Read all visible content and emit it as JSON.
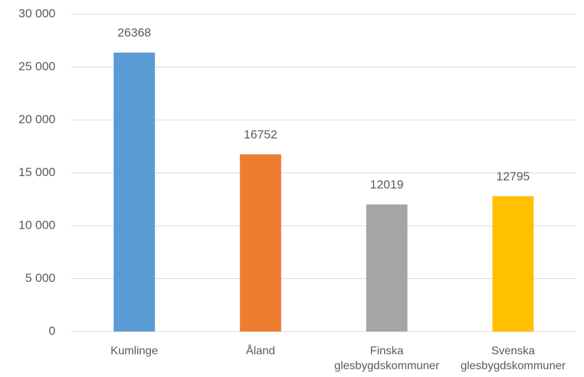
{
  "chart_data": {
    "type": "bar",
    "categories": [
      "Kumlinge",
      "Åland",
      "Finska\nglesbygdskommuner",
      "Svenska\nglesbygdskommuner"
    ],
    "values": [
      26368,
      16752,
      12019,
      12795
    ],
    "colors": [
      "#5b9bd5",
      "#ed7d31",
      "#a5a5a5",
      "#ffc000"
    ],
    "ylim": [
      0,
      30000
    ],
    "yticks": [
      0,
      {
        "value": 5000,
        "label": "5 000"
      },
      {
        "value": 10000,
        "label": "10 000"
      },
      {
        "value": 15000,
        "label": "15 000"
      },
      {
        "value": 20000,
        "label": "20 000"
      },
      {
        "value": 25000,
        "label": "25 000"
      },
      {
        "value": 30000,
        "label": "30 000"
      }
    ],
    "grid": true
  }
}
